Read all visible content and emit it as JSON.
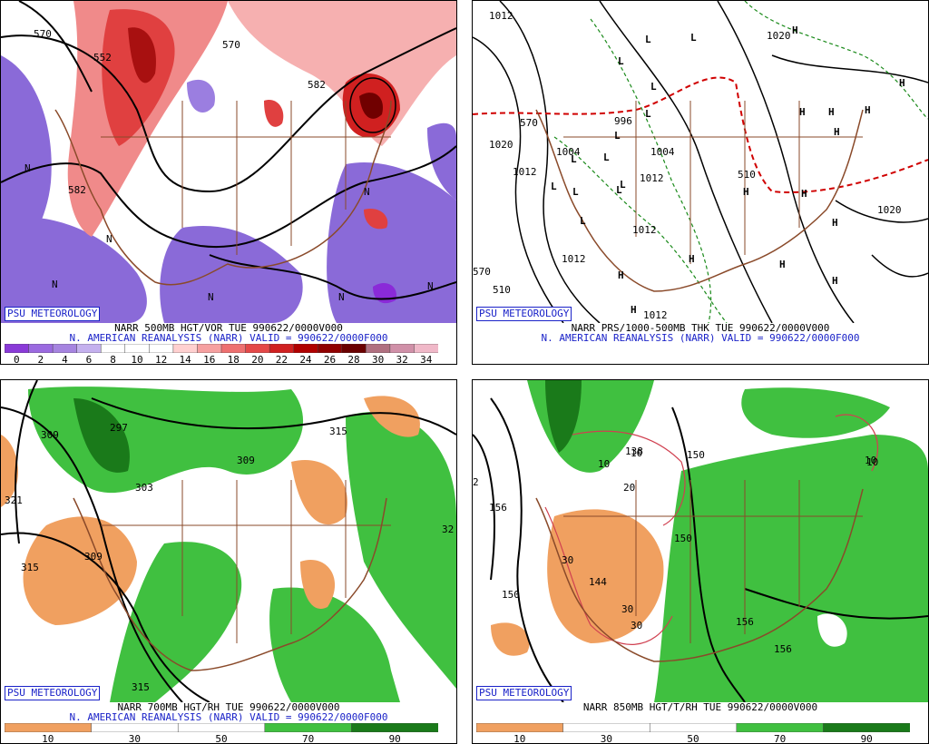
{
  "badge": "PSU METEOROLOGY",
  "panels": {
    "p1": {
      "caption1": "NARR 500MB HGT/VOR TUE 990622/0000V000",
      "caption2": "N. AMERICAN REANALYSIS (NARR) VALID = 990622/0000F000",
      "colorbar": {
        "ticks": [
          "0",
          "2",
          "4",
          "6",
          "8",
          "10",
          "12",
          "14",
          "16",
          "18",
          "20",
          "22",
          "24",
          "26",
          "28",
          "30",
          "32",
          "34"
        ],
        "colors": [
          "#8a3ad8",
          "#9b6ae0",
          "#a684e0",
          "#c4b0ee",
          "#ffffff",
          "#ffffff",
          "#ffffff",
          "#ffd0d0",
          "#f6a0a0",
          "#ee7070",
          "#e44848",
          "#d02020",
          "#b00000",
          "#900000",
          "#6a0000",
          "#b07080",
          "#d090a8",
          "#f0b8c8"
        ]
      },
      "labels": [
        "570",
        "552",
        "570",
        "582",
        "582",
        "N",
        "N",
        "N",
        "N",
        "N",
        "N",
        "N"
      ]
    },
    "p2": {
      "caption1": "NARR PRS/1000-500MB THK TUE 990622/0000V000",
      "caption2": "N. AMERICAN REANALYSIS (NARR) VALID = 990622/0000F000",
      "labels": [
        "1012",
        "1020",
        "1020",
        "1012",
        "1004",
        "1004",
        "1012",
        "1012",
        "1012",
        "1020",
        "996",
        "1012",
        "570",
        "570",
        "510",
        "510"
      ],
      "lows": [
        "L",
        "L",
        "L",
        "L",
        "L",
        "L",
        "L",
        "L",
        "L",
        "L",
        "L",
        "L",
        "L"
      ],
      "highs": [
        "H",
        "H",
        "H",
        "H",
        "H",
        "H",
        "H",
        "H",
        "H",
        "H",
        "H",
        "H",
        "H",
        "H"
      ]
    },
    "p3": {
      "caption1": "NARR 700MB HGT/RH TUE 990622/0000V000",
      "caption2": "N. AMERICAN REANALYSIS (NARR) VALID = 990622/0000F000",
      "colorbar": {
        "ticks": [
          "10",
          "30",
          "50",
          "70",
          "90"
        ],
        "colors": [
          "#f0a060",
          "#ffffff",
          "#ffffff",
          "#40c040",
          "#1a7a1a"
        ]
      },
      "labels": [
        "309",
        "297",
        "303",
        "321",
        "309",
        "315",
        "309",
        "315",
        "315",
        "32"
      ]
    },
    "p4": {
      "caption1": "NARR 850MB HGT/T/RH TUE 990622/0000V000",
      "caption2": "",
      "colorbar": {
        "ticks": [
          "10",
          "30",
          "50",
          "70",
          "90"
        ],
        "colors": [
          "#f0a060",
          "#ffffff",
          "#ffffff",
          "#40c040",
          "#1a7a1a"
        ]
      },
      "labels": [
        "156",
        "150",
        "150",
        "144",
        "138",
        "150",
        "156",
        "156",
        "10",
        "10",
        "10",
        "20",
        "30",
        "30",
        "30",
        "10",
        "2"
      ]
    }
  }
}
